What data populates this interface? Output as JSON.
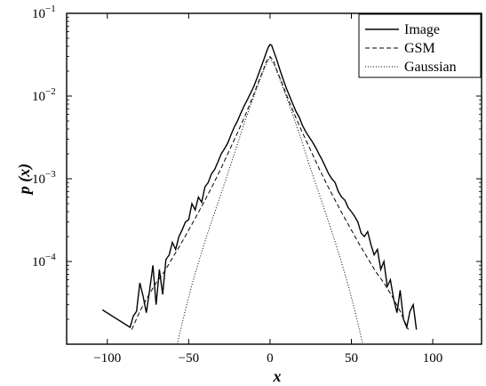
{
  "chart_data": {
    "type": "line",
    "title": "",
    "xlabel": "x",
    "ylabel": "p (x)",
    "xlim": [
      -125,
      130
    ],
    "ylim": [
      1e-05,
      0.1
    ],
    "yscale": "log",
    "x_ticks": [
      -100,
      -50,
      0,
      50,
      100
    ],
    "x_tick_labels": [
      "−100",
      "−50",
      "0",
      "50",
      "100"
    ],
    "y_ticks": [
      0.0001,
      0.001,
      0.01,
      0.1
    ],
    "y_tick_labels": [
      {
        "base": "10",
        "exp": "−4"
      },
      {
        "base": "10",
        "exp": "−3"
      },
      {
        "base": "10",
        "exp": "−2"
      },
      {
        "base": "10",
        "exp": "−1"
      }
    ],
    "grid": false,
    "legend_position": "top-right",
    "series": [
      {
        "name": "Image",
        "style": "solid",
        "x": [
          -103,
          -86,
          -84,
          -82,
          -80,
          -78,
          -76,
          -74,
          -72,
          -70,
          -68,
          -66,
          -64,
          -62,
          -60,
          -58,
          -56,
          -54,
          -52,
          -50,
          -48,
          -46,
          -44,
          -42,
          -40,
          -38,
          -36,
          -34,
          -32,
          -30,
          -28,
          -26,
          -24,
          -22,
          -20,
          -18,
          -16,
          -14,
          -12,
          -10,
          -8,
          -6,
          -4,
          -2,
          -1,
          0,
          1,
          2,
          4,
          6,
          8,
          10,
          12,
          14,
          16,
          18,
          20,
          22,
          24,
          26,
          28,
          30,
          32,
          34,
          36,
          38,
          40,
          42,
          44,
          46,
          48,
          50,
          52,
          54,
          56,
          58,
          60,
          62,
          64,
          66,
          68,
          70,
          72,
          74,
          76,
          78,
          80,
          82,
          84,
          86,
          88,
          90
        ],
        "y": [
          2.6e-05,
          1.6e-05,
          2.2e-05,
          2.5e-05,
          5.5e-05,
          3.8e-05,
          2.4e-05,
          4.5e-05,
          9e-05,
          3e-05,
          8e-05,
          4e-05,
          0.000105,
          0.00012,
          0.00017,
          0.00014,
          0.0002,
          0.00024,
          0.0003,
          0.00032,
          0.0005,
          0.00042,
          0.0006,
          0.00052,
          0.0008,
          0.0009,
          0.00115,
          0.0013,
          0.0016,
          0.002,
          0.0023,
          0.0027,
          0.0034,
          0.0042,
          0.005,
          0.0062,
          0.0075,
          0.009,
          0.0108,
          0.013,
          0.0165,
          0.021,
          0.027,
          0.035,
          0.039,
          0.042,
          0.041,
          0.036,
          0.028,
          0.021,
          0.016,
          0.0125,
          0.01,
          0.008,
          0.0065,
          0.0055,
          0.0044,
          0.0037,
          0.0032,
          0.0028,
          0.0024,
          0.002,
          0.0017,
          0.0014,
          0.00115,
          0.001,
          0.0009,
          0.0007,
          0.0006,
          0.00055,
          0.00045,
          0.0004,
          0.00035,
          0.0003,
          0.00022,
          0.0002,
          0.00023,
          0.00016,
          0.00012,
          0.00014,
          8e-05,
          0.0001,
          5e-05,
          6e-05,
          3.5e-05,
          2.4e-05,
          4.5e-05,
          2e-05,
          1.6e-05,
          2.5e-05,
          3e-05,
          1.5e-05
        ]
      },
      {
        "name": "GSM",
        "style": "dashed",
        "x": [
          -85,
          -80,
          -75,
          -70,
          -65,
          -60,
          -55,
          -50,
          -45,
          -40,
          -35,
          -30,
          -25,
          -20,
          -15,
          -10,
          -7,
          -4,
          -2,
          0,
          2,
          4,
          7,
          10,
          15,
          20,
          25,
          30,
          35,
          40,
          45,
          50,
          55,
          60,
          65,
          70,
          75,
          80,
          85
        ],
        "y": [
          1.5e-05,
          2.5e-05,
          3.8e-05,
          5.5e-05,
          7.5e-05,
          0.00011,
          0.00016,
          0.00024,
          0.00036,
          0.00055,
          0.00085,
          0.00135,
          0.0022,
          0.0036,
          0.006,
          0.0105,
          0.015,
          0.021,
          0.027,
          0.03,
          0.027,
          0.021,
          0.015,
          0.0105,
          0.006,
          0.0036,
          0.0022,
          0.00135,
          0.00085,
          0.00055,
          0.00036,
          0.00024,
          0.00016,
          0.00011,
          7.5e-05,
          5.5e-05,
          3.8e-05,
          2.5e-05,
          1.5e-05
        ]
      },
      {
        "name": "Gaussian",
        "style": "dotted",
        "x": [
          -57,
          -54,
          -51,
          -48,
          -45,
          -42,
          -39,
          -36,
          -33,
          -30,
          -27,
          -24,
          -21,
          -18,
          -15,
          -12,
          -9,
          -6,
          -3,
          0,
          3,
          6,
          9,
          12,
          15,
          18,
          21,
          24,
          27,
          30,
          33,
          36,
          39,
          42,
          45,
          48,
          51,
          54,
          57
        ],
        "y": [
          1e-05,
          1.8e-05,
          3.1e-05,
          5.2e-05,
          8.3e-05,
          0.00013,
          0.0002,
          0.0003,
          0.00045,
          0.00067,
          0.001,
          0.0015,
          0.0023,
          0.0035,
          0.0052,
          0.0077,
          0.011,
          0.016,
          0.023,
          0.029,
          0.023,
          0.016,
          0.011,
          0.0077,
          0.0052,
          0.0035,
          0.0023,
          0.0015,
          0.001,
          0.00067,
          0.00045,
          0.0003,
          0.0002,
          0.00013,
          8.3e-05,
          5.2e-05,
          3.1e-05,
          1.8e-05,
          1e-05
        ]
      }
    ]
  },
  "legend": {
    "items": [
      {
        "label": "Image"
      },
      {
        "label": "GSM"
      },
      {
        "label": "Gaussian"
      }
    ]
  }
}
